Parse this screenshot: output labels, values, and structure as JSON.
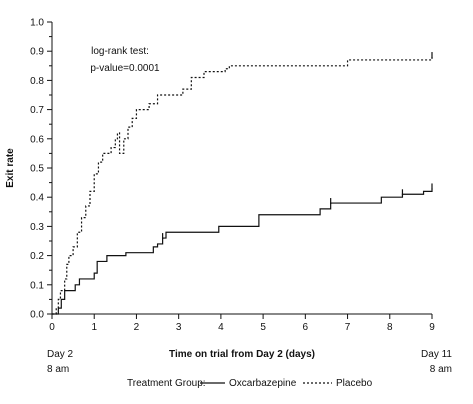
{
  "chart_data": {
    "type": "line",
    "title": "",
    "xlabel": "Time on trial from Day 2 (days)",
    "ylabel": "Exit rate",
    "xlim": [
      0,
      9
    ],
    "ylim": [
      0,
      1.0
    ],
    "x_ticks": [
      "0",
      "1",
      "2",
      "3",
      "4",
      "5",
      "6",
      "7",
      "8",
      "9"
    ],
    "y_ticks": [
      "0.0",
      "0.1",
      "0.2",
      "0.3",
      "0.4",
      "0.5",
      "0.6",
      "0.7",
      "0.8",
      "0.9",
      "1.0"
    ],
    "x_start_label": [
      "Day 2",
      "8 am"
    ],
    "x_end_label": [
      "Day 11",
      "8 am"
    ],
    "annotation": [
      "log-rank test:",
      "p-value=0.0001"
    ],
    "legend": {
      "title": "Treatment Group:",
      "position": "bottom"
    },
    "series": [
      {
        "name": "Oxcarbazepine",
        "style": "solid",
        "color": "#111111",
        "steps": [
          [
            0,
            0
          ],
          [
            0.15,
            0.02
          ],
          [
            0.22,
            0.05
          ],
          [
            0.3,
            0.08
          ],
          [
            0.55,
            0.1
          ],
          [
            0.65,
            0.12
          ],
          [
            1.0,
            0.14
          ],
          [
            1.07,
            0.18
          ],
          [
            1.3,
            0.2
          ],
          [
            1.75,
            0.21
          ],
          [
            2.4,
            0.23
          ],
          [
            2.5,
            0.24
          ],
          [
            2.62,
            0.26
          ],
          [
            2.7,
            0.28
          ],
          [
            3.95,
            0.3
          ],
          [
            4.9,
            0.34
          ],
          [
            6.35,
            0.36
          ],
          [
            6.6,
            0.38
          ],
          [
            7.8,
            0.4
          ],
          [
            8.3,
            0.41
          ],
          [
            8.8,
            0.42
          ],
          [
            9.0,
            0.43
          ]
        ],
        "x_end": 9.0,
        "censor_marks": [
          [
            2.62,
            0.26
          ],
          [
            6.6,
            0.38
          ],
          [
            8.3,
            0.41
          ],
          [
            9.0,
            0.43
          ]
        ]
      },
      {
        "name": "Placebo",
        "style": "dashed",
        "color": "#111111",
        "steps": [
          [
            0,
            0
          ],
          [
            0.1,
            0.02
          ],
          [
            0.15,
            0.05
          ],
          [
            0.2,
            0.08
          ],
          [
            0.3,
            0.12
          ],
          [
            0.35,
            0.17
          ],
          [
            0.4,
            0.2
          ],
          [
            0.5,
            0.23
          ],
          [
            0.6,
            0.28
          ],
          [
            0.7,
            0.33
          ],
          [
            0.8,
            0.37
          ],
          [
            0.9,
            0.42
          ],
          [
            1.0,
            0.48
          ],
          [
            1.1,
            0.52
          ],
          [
            1.2,
            0.55
          ],
          [
            1.4,
            0.57
          ],
          [
            1.5,
            0.6
          ],
          [
            1.55,
            0.62
          ],
          [
            1.6,
            0.55
          ],
          [
            1.7,
            0.6
          ],
          [
            1.8,
            0.64
          ],
          [
            1.9,
            0.67
          ],
          [
            2.0,
            0.7
          ],
          [
            2.3,
            0.72
          ],
          [
            2.5,
            0.75
          ],
          [
            2.9,
            0.75
          ],
          [
            3.1,
            0.77
          ],
          [
            3.3,
            0.81
          ],
          [
            3.6,
            0.83
          ],
          [
            4.1,
            0.84
          ],
          [
            4.2,
            0.85
          ],
          [
            7.0,
            0.87
          ],
          [
            9.0,
            0.88
          ]
        ],
        "x_end": 9.0,
        "censor_marks": [
          [
            9.0,
            0.88
          ]
        ]
      }
    ]
  }
}
